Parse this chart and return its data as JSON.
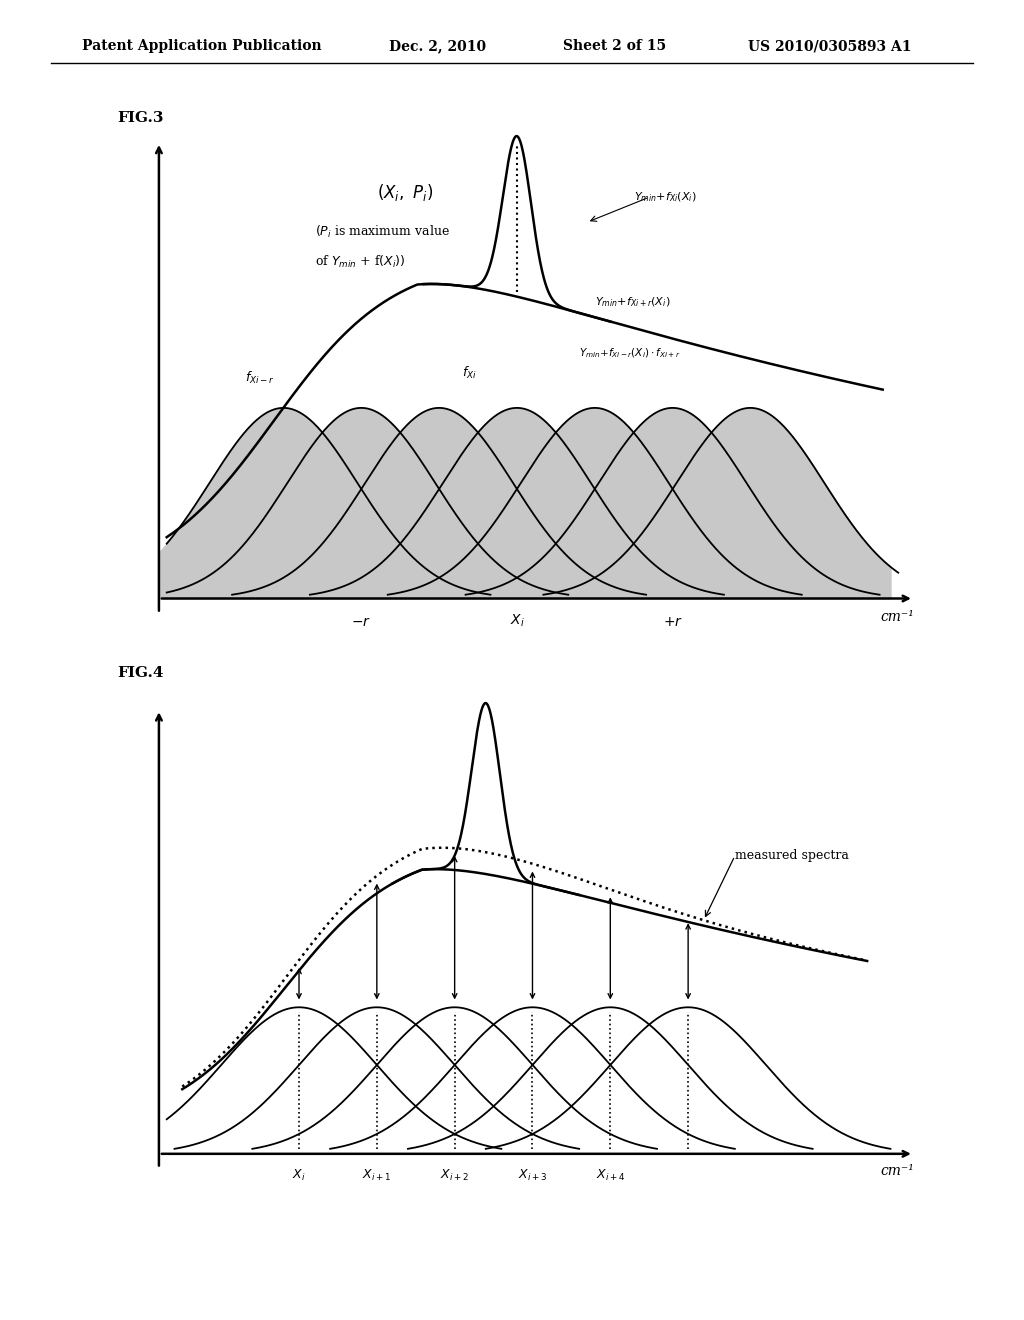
{
  "bg_color": "#ffffff",
  "fill_color": "#c8c8c8",
  "header_text": "Patent Application Publication",
  "header_date": "Dec. 2, 2010",
  "header_sheet": "Sheet 2 of 15",
  "header_patent": "US 2010/0305893 A1",
  "fig3_label": "FIG.3",
  "fig4_label": "FIG.4",
  "cm_inv": "cm⁻¹"
}
